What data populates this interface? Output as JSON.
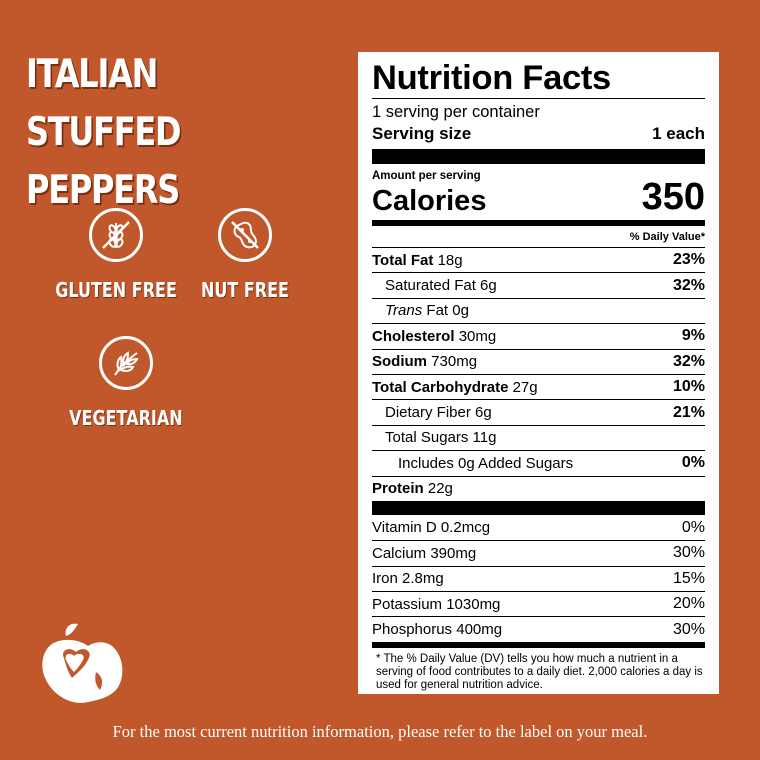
{
  "title_lines": [
    "ITALIAN STUFFED",
    "PEPPERS"
  ],
  "badges": {
    "gluten_free": "GLUTEN FREE",
    "nut_free": "NUT FREE",
    "vegetarian": "VEGETARIAN"
  },
  "footer_text": "For the most current nutrition information, please refer to the label on your meal.",
  "colors": {
    "background": "#c0582b",
    "panel": "#ffffff",
    "text": "#000000"
  },
  "nutrition": {
    "heading": "Nutrition Facts",
    "servings_per_container": "1 serving per container",
    "serving_size_label": "Serving size",
    "serving_size_value": "1 each",
    "amount_per_serving": "Amount per serving",
    "calories_label": "Calories",
    "calories_value": "350",
    "dv_header": "% Daily Value*",
    "total_fat": {
      "label": "Total Fat",
      "amount": "18g",
      "pct": "23%"
    },
    "saturated_fat": {
      "label": "Saturated Fat 6g",
      "pct": "32%"
    },
    "trans_fat": {
      "label_italic": "Trans",
      "label_rest": "Fat 0g"
    },
    "cholesterol": {
      "label": "Cholesterol",
      "amount": "30mg",
      "pct": "9%"
    },
    "sodium": {
      "label": "Sodium",
      "amount": "730mg",
      "pct": "32%"
    },
    "total_carb": {
      "label": "Total Carbohydrate",
      "amount": "27g",
      "pct": "10%"
    },
    "fiber": {
      "label": "Dietary Fiber 6g",
      "pct": "21%"
    },
    "total_sugars": {
      "label": "Total Sugars 11g"
    },
    "added_sugars": {
      "label": "Includes 0g Added Sugars",
      "pct": "0%"
    },
    "protein": {
      "label": "Protein",
      "amount": "22g"
    },
    "vitamins": [
      {
        "label": "Vitamin D 0.2mcg",
        "pct": "0%"
      },
      {
        "label": "Calcium 390mg",
        "pct": "30%"
      },
      {
        "label": "Iron 2.8mg",
        "pct": "15%"
      },
      {
        "label": "Potassium 1030mg",
        "pct": "20%"
      },
      {
        "label": "Phosphorus 400mg",
        "pct": "30%"
      }
    ],
    "footnote": "* The % Daily Value (DV) tells you how much a nutrient in a serving of food contributes to a daily diet. 2,000 calories a day is used for general nutrition advice."
  }
}
